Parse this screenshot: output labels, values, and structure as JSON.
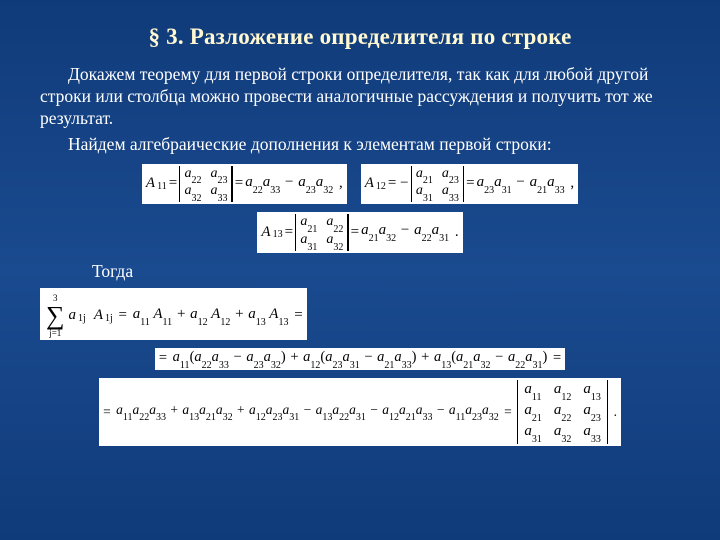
{
  "title": "§ 3. Разложение определителя по строке",
  "paragraph1": "Докажем теорему для первой строки определителя, так как для любой другой строки или столбца можно провести аналогичные рассуждения и получить тот же результат.",
  "paragraph2": "Найдем алгебраические дополнения к элементам первой строки:",
  "togda_label": "Тогда",
  "minors": {
    "A11": {
      "label": "A",
      "sub": "11",
      "cells": [
        "a",
        "22",
        "a",
        "23",
        "a",
        "32",
        "a",
        "33"
      ],
      "expansion_lhs": [
        "a",
        "22",
        "a",
        "33"
      ],
      "expansion_rhs": [
        "a",
        "23",
        "a",
        "32"
      ]
    },
    "A12": {
      "label": "A",
      "sub": "12",
      "cells": [
        "a",
        "21",
        "a",
        "23",
        "a",
        "31",
        "a",
        "33"
      ],
      "expansion_lhs": [
        "a",
        "23",
        "a",
        "31"
      ],
      "expansion_rhs": [
        "a",
        "21",
        "a",
        "33"
      ]
    },
    "A13": {
      "label": "A",
      "sub": "13",
      "cells": [
        "a",
        "21",
        "a",
        "22",
        "a",
        "31",
        "a",
        "32"
      ],
      "expansion_lhs": [
        "a",
        "21",
        "a",
        "32"
      ],
      "expansion_rhs": [
        "a",
        "22",
        "a",
        "31"
      ]
    }
  },
  "sum_upper": "3",
  "sum_lower": "j=1",
  "sum_term": {
    "a": "a",
    "asub": "1j",
    "A": "A",
    "Asub": "1j"
  },
  "sum_rhs": [
    {
      "coef": [
        "a",
        "11"
      ],
      "mult": [
        "A",
        "11"
      ]
    },
    {
      "coef": [
        "a",
        "12"
      ],
      "mult": [
        "A",
        "12"
      ]
    },
    {
      "coef": [
        "a",
        "13"
      ],
      "mult": [
        "A",
        "13"
      ]
    }
  ],
  "expanded_line": [
    {
      "coef": [
        "a",
        "11"
      ],
      "l": [
        "a",
        "22",
        "a",
        "33"
      ],
      "r": [
        "a",
        "23",
        "a",
        "32"
      ]
    },
    {
      "coef": [
        "a",
        "12"
      ],
      "l": [
        "a",
        "23",
        "a",
        "31"
      ],
      "r": [
        "a",
        "21",
        "a",
        "33"
      ]
    },
    {
      "coef": [
        "a",
        "13"
      ],
      "l": [
        "a",
        "21",
        "a",
        "32"
      ],
      "r": [
        "a",
        "22",
        "a",
        "31"
      ]
    }
  ],
  "final_terms": [
    {
      "s": "",
      "t": [
        "a",
        "11",
        "a",
        "22",
        "a",
        "33"
      ]
    },
    {
      "s": "+",
      "t": [
        "a",
        "13",
        "a",
        "21",
        "a",
        "32"
      ]
    },
    {
      "s": "+",
      "t": [
        "a",
        "12",
        "a",
        "23",
        "a",
        "31"
      ]
    },
    {
      "s": "−",
      "t": [
        "a",
        "13",
        "a",
        "22",
        "a",
        "31"
      ]
    },
    {
      "s": "−",
      "t": [
        "a",
        "12",
        "a",
        "21",
        "a",
        "33"
      ]
    },
    {
      "s": "−",
      "t": [
        "a",
        "11",
        "a",
        "23",
        "a",
        "32"
      ]
    }
  ],
  "det3": [
    "a",
    "11",
    "a",
    "12",
    "a",
    "13",
    "a",
    "21",
    "a",
    "22",
    "a",
    "23",
    "a",
    "31",
    "a",
    "32",
    "a",
    "33"
  ],
  "style": {
    "background_gradient": [
      "#103b7a",
      "#1a4a8f",
      "#103b7a"
    ],
    "title_color": "#fff8d0",
    "text_color": "#ffffff",
    "formula_bg": "#ffffff",
    "formula_text": "#000000",
    "font_family": "Times New Roman",
    "title_fontsize_pt": 17,
    "body_fontsize_pt": 13,
    "formula_fontsize_pt": 11,
    "slide_width": 720,
    "slide_height": 540
  }
}
